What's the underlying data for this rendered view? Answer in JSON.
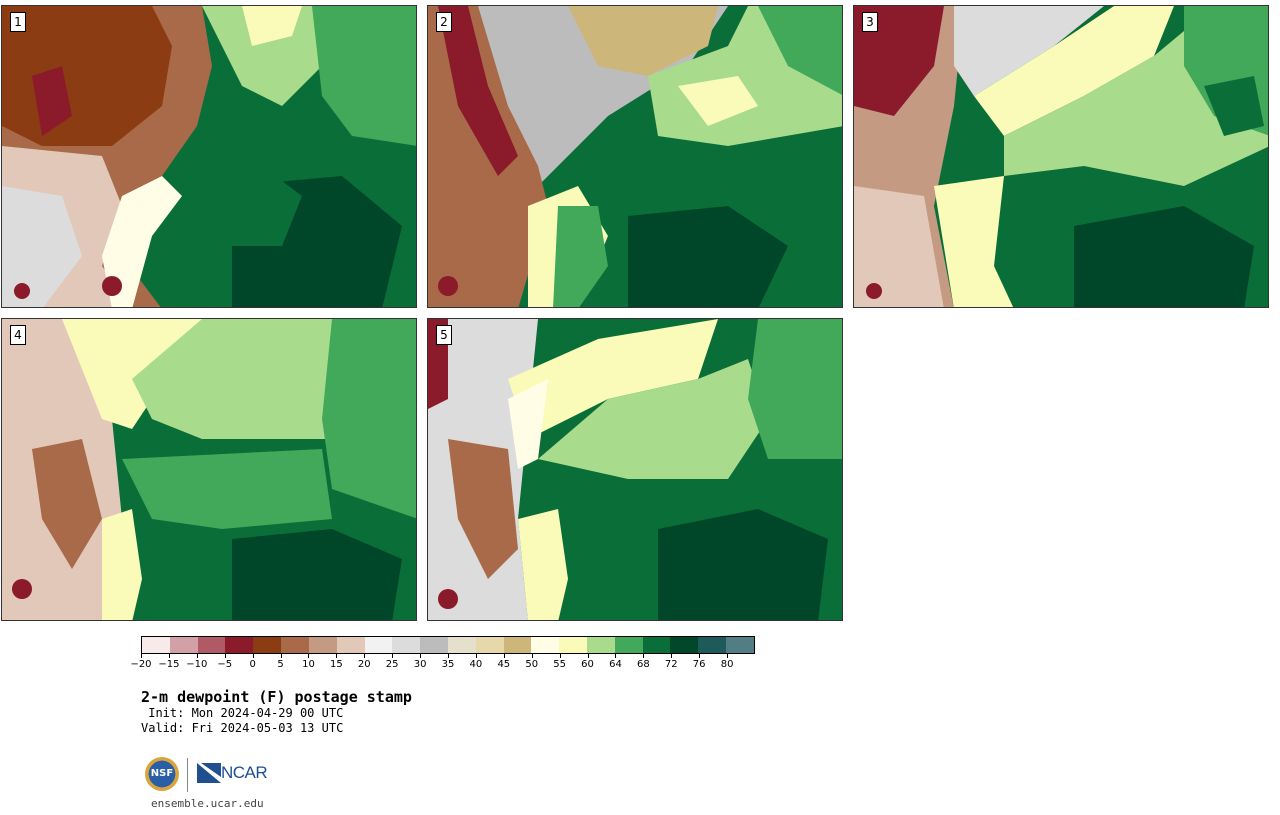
{
  "panels": [
    {
      "id": "p1",
      "label": "1"
    },
    {
      "id": "p2",
      "label": "2"
    },
    {
      "id": "p3",
      "label": "3"
    },
    {
      "id": "p4",
      "label": "4"
    },
    {
      "id": "p5",
      "label": "5"
    }
  ],
  "colorbar": {
    "colors": [
      "#f7eaea",
      "#d4a0a8",
      "#b05a66",
      "#8b1a2a",
      "#8b3c12",
      "#a86a48",
      "#c49a82",
      "#e2c8b8",
      "#f2f2f2",
      "#dcdcdc",
      "#bcbcbc",
      "#e4e0cc",
      "#e6d8a8",
      "#cdb67a",
      "#fffde6",
      "#fafbb8",
      "#a8dc8c",
      "#42a85a",
      "#0a6e38",
      "#00472a",
      "#1e5a5a",
      "#507e84"
    ],
    "tick_labels": [
      "−20",
      "−15",
      "−10",
      "−5",
      "0",
      "5",
      "10",
      "15",
      "20",
      "25",
      "30",
      "35",
      "40",
      "45",
      "50",
      "55",
      "60",
      "64",
      "68",
      "72",
      "76",
      "80"
    ]
  },
  "title": "2-m dewpoint (F) postage stamp",
  "init_line": " Init: Mon 2024-04-29 00 UTC",
  "valid_line": "Valid: Fri 2024-05-03 13 UTC",
  "logos": {
    "nsf_text": "NSF",
    "ncar_text": "NCAR"
  },
  "site": "ensemble.ucar.edu"
}
